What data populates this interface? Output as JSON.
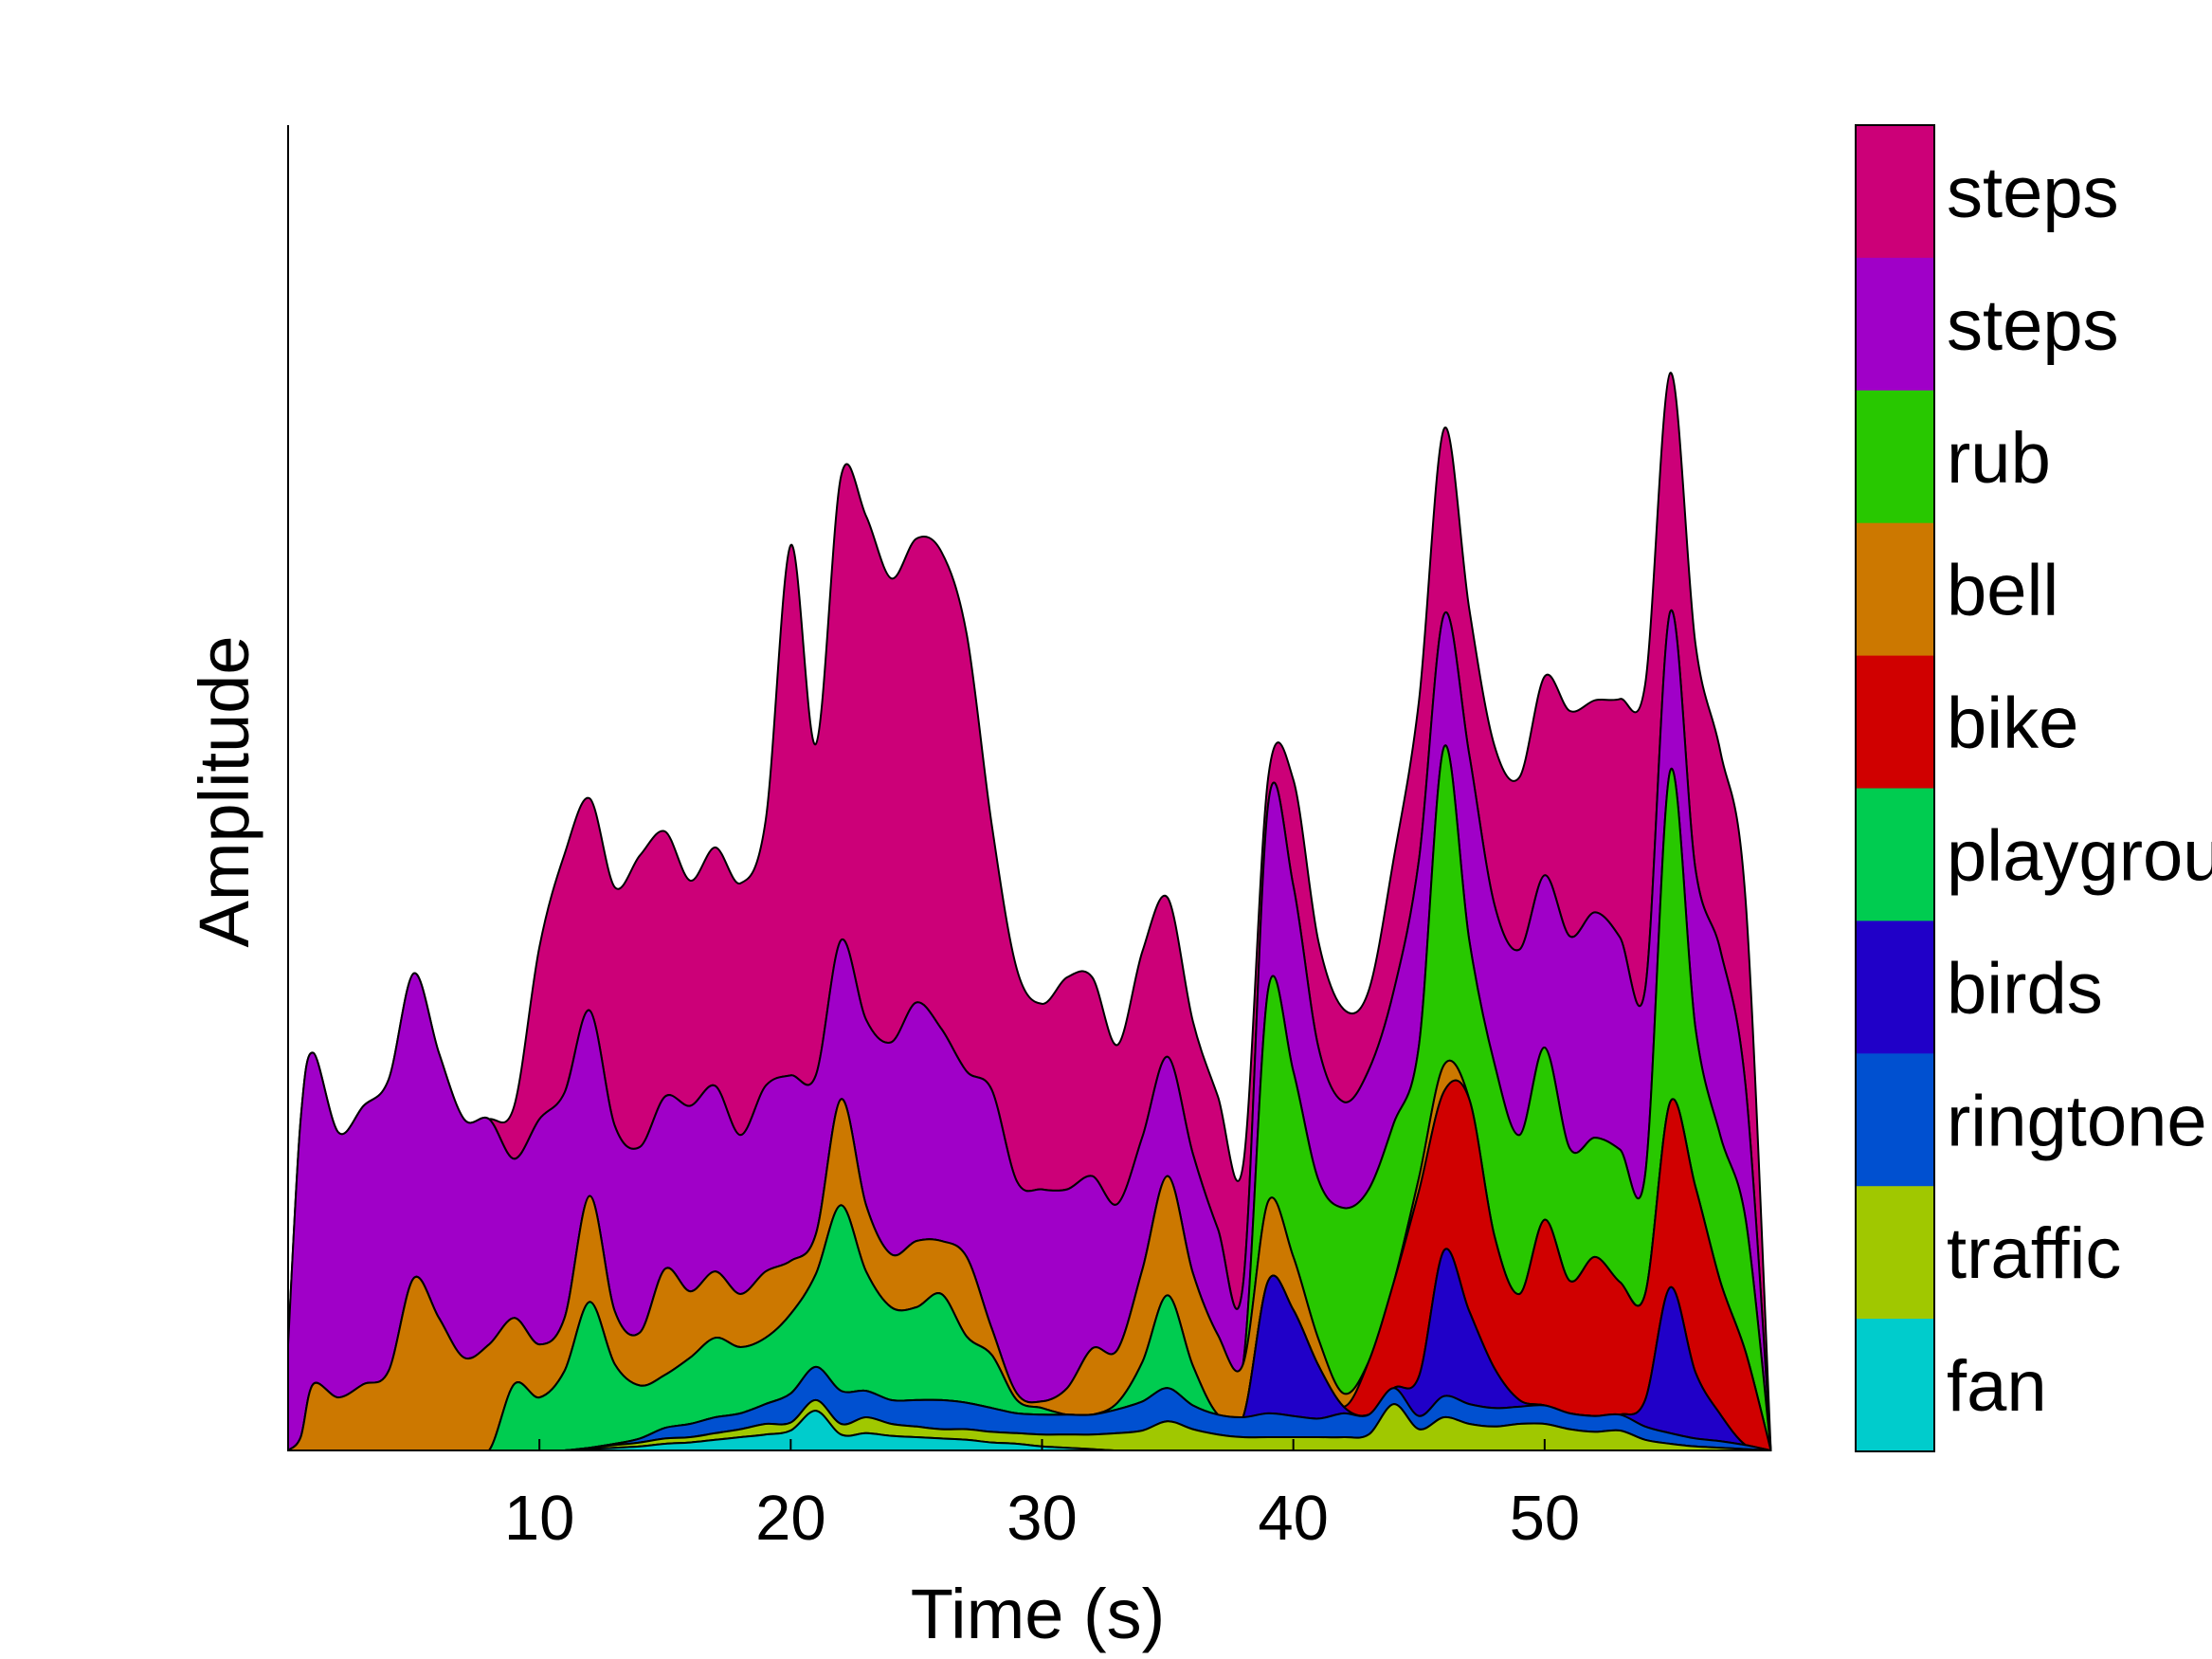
{
  "chart_data": {
    "type": "area",
    "stacked": true,
    "xlabel": "Time (s)",
    "ylabel": "Amplitude",
    "xlim": [
      0,
      60
    ],
    "ylim": [
      0,
      100
    ],
    "x_ticks": [
      10,
      20,
      30,
      40,
      50
    ],
    "y_ticks_shown": false,
    "grid": false,
    "legend": {
      "placement": "right",
      "style": "colorbar",
      "entries": [
        "fan",
        "traffic",
        "ringtone",
        "birds",
        "playground",
        "bike",
        "bell",
        "rub",
        "steps",
        "steps"
      ],
      "visible_text": [
        "fan",
        "traffic",
        "ringtone",
        "birds",
        "playgrou",
        "bike",
        "bell",
        "rub",
        "steps",
        "steps"
      ]
    },
    "x": [
      0,
      0.5,
      1,
      2,
      3,
      4,
      5,
      6,
      7,
      8,
      9,
      10,
      11,
      12,
      13,
      14,
      15,
      16,
      17,
      18,
      19,
      20,
      21,
      22,
      23,
      24,
      25,
      26,
      27,
      28,
      29,
      30,
      31,
      32,
      33,
      34,
      35,
      36,
      37,
      38,
      39,
      40,
      41,
      42,
      43,
      44,
      45,
      46,
      47,
      48,
      49,
      50,
      51,
      52,
      53,
      54,
      55,
      56,
      57,
      58,
      59
    ],
    "series": [
      {
        "name": "steps",
        "color": "#00cccc",
        "values": [
          0,
          0,
          0,
          0,
          0,
          0,
          0,
          0,
          0,
          0,
          0,
          0,
          0,
          0.1,
          0.2,
          0.3,
          0.5,
          0.6,
          0.8,
          1,
          1.2,
          1.5,
          3,
          1.2,
          1.3,
          1.1,
          1,
          0.9,
          0.8,
          0.6,
          0.5,
          0.3,
          0.2,
          0.1,
          0,
          0,
          0,
          0,
          0,
          0,
          0,
          0,
          0,
          0,
          0,
          0,
          0,
          0,
          0,
          0,
          0,
          0,
          0,
          0,
          0,
          0,
          0,
          0,
          0,
          0,
          0
        ]
      },
      {
        "name": "steps",
        "color": "#a0c800",
        "values": [
          0,
          0,
          0,
          0,
          0,
          0,
          0,
          0,
          0,
          0,
          0,
          0,
          0,
          0.1,
          0.2,
          0.3,
          0.4,
          0.4,
          0.5,
          0.6,
          0.8,
          0.6,
          0.8,
          0.8,
          1.2,
          0.9,
          0.8,
          0.7,
          0.8,
          0.8,
          0.8,
          0.9,
          1,
          1.1,
          1.3,
          1.5,
          2.2,
          1.6,
          1.2,
          1,
          1,
          1,
          1,
          1,
          1.2,
          3.5,
          1.6,
          2.5,
          2,
          1.8,
          2,
          2,
          1.6,
          1.4,
          1.5,
          0.8,
          0.5,
          0.3,
          0.2,
          0.1,
          0
        ]
      },
      {
        "name": "rub",
        "color": "#0050d0",
        "values": [
          0,
          0,
          0,
          0,
          0,
          0,
          0,
          0,
          0,
          0,
          0,
          0,
          0,
          0,
          0.1,
          0.3,
          0.8,
          1,
          1.2,
          1.2,
          1.5,
          2.2,
          2.5,
          2.5,
          2,
          1.8,
          2,
          2.2,
          2,
          1.8,
          1.5,
          1.5,
          1.5,
          1.5,
          1.8,
          2.2,
          2.5,
          1.8,
          1.5,
          1.5,
          1.8,
          1.6,
          1.4,
          1.8,
          1.5,
          1.2,
          1,
          1.6,
          1.5,
          1.4,
          1.3,
          1.4,
          1.2,
          1.2,
          1.2,
          1,
          0.8,
          0.6,
          0.5,
          0.3,
          0
        ]
      },
      {
        "name": "bell",
        "color": "#2000c8",
        "values": [
          0,
          0,
          0,
          0,
          0,
          0,
          0,
          0,
          0,
          0,
          0,
          0,
          0,
          0,
          0,
          0,
          0,
          0,
          0,
          0,
          0,
          0,
          0,
          0,
          0,
          0,
          0,
          0,
          0,
          0,
          0,
          0,
          0,
          0,
          0,
          0,
          0,
          0,
          0,
          0,
          10,
          8,
          4,
          0.5,
          0,
          0,
          3,
          11,
          7,
          3,
          0.5,
          0,
          0,
          0,
          0,
          2,
          11,
          5,
          2,
          0,
          0
        ]
      },
      {
        "name": "bike",
        "color": "#00cc50",
        "values": [
          0,
          0,
          0,
          0,
          0,
          0,
          0,
          0,
          0,
          0,
          5,
          4,
          6,
          11,
          6,
          4,
          4,
          5,
          6,
          5,
          5,
          6,
          7,
          14,
          9,
          7,
          7,
          8,
          5,
          4,
          1,
          0.5,
          0,
          0,
          0.5,
          3,
          7,
          3,
          0,
          0,
          0,
          0,
          0,
          0,
          0,
          0,
          0,
          0,
          0,
          0,
          0,
          0,
          0,
          0,
          0,
          0,
          0,
          0,
          0,
          0,
          0
        ]
      },
      {
        "name": "playground",
        "color": "#d00000",
        "values": [
          0,
          0,
          0,
          0,
          0,
          0,
          0,
          0,
          0,
          0,
          0,
          0,
          0,
          0,
          0,
          0,
          0,
          0,
          0,
          0,
          0,
          0,
          0,
          0,
          0,
          0,
          0,
          0,
          0,
          0,
          0,
          0,
          0,
          0,
          0,
          0,
          0,
          0,
          0,
          0,
          0,
          0,
          0,
          0,
          4,
          8,
          14,
          12,
          16,
          10,
          8,
          14,
          10,
          12,
          10,
          8,
          14,
          14,
          10,
          7,
          0
        ]
      },
      {
        "name": "birds",
        "color": "#cc7800",
        "values": [
          0,
          1,
          5,
          4,
          5,
          6,
          13,
          10,
          7,
          8,
          5,
          4,
          4,
          8,
          4,
          4,
          8,
          5,
          5,
          4,
          5,
          4,
          3,
          8,
          5,
          4,
          5,
          4,
          6,
          2,
          0.5,
          0.5,
          2,
          5,
          4,
          7,
          9,
          7,
          6,
          4,
          6,
          4,
          2,
          1,
          0,
          0,
          1,
          2,
          0,
          0,
          0,
          0,
          0,
          0,
          0,
          0,
          0,
          0,
          0,
          0,
          0
        ]
      },
      {
        "name": "ringtone",
        "color": "#28c800",
        "values": [
          0,
          0,
          0,
          0,
          0,
          0,
          0,
          0,
          0,
          0,
          0,
          0,
          0,
          0,
          0,
          0,
          0,
          0,
          0,
          0,
          0,
          0,
          0,
          0,
          0,
          0,
          0,
          0,
          0,
          0,
          0,
          0,
          0,
          0,
          0,
          0,
          0,
          0,
          0,
          0,
          16,
          14,
          12,
          14,
          13,
          12,
          10,
          24,
          12,
          13,
          12,
          13,
          10,
          9,
          10,
          9,
          25,
          12,
          11,
          10,
          0
        ]
      },
      {
        "name": "traffic",
        "color": "#a000c8",
        "values": [
          8,
          24,
          25,
          20,
          21,
          22,
          23,
          20,
          18,
          17,
          12,
          17,
          17,
          14,
          14,
          14,
          13,
          14,
          14,
          12,
          14,
          14,
          12,
          12,
          14,
          16,
          18,
          16,
          14,
          18,
          16,
          16,
          15,
          13,
          11,
          10,
          9,
          9,
          8,
          6,
          14,
          14,
          10,
          8,
          9,
          10,
          14,
          10,
          14,
          12,
          14,
          13,
          16,
          17,
          16,
          14,
          12,
          12,
          14,
          10,
          0
        ]
      },
      {
        "name": "fan",
        "color": "#cc0078",
        "values": [
          0,
          0,
          0,
          0,
          0,
          0,
          0,
          0,
          0,
          0,
          4,
          13,
          18,
          16,
          18,
          22,
          20,
          17,
          18,
          19,
          20,
          40,
          25,
          35,
          38,
          35,
          35,
          36,
          33,
          20,
          16,
          14,
          16,
          15,
          12,
          14,
          12,
          10,
          10,
          9,
          2,
          8,
          8,
          7,
          6,
          10,
          12,
          14,
          11,
          12,
          13,
          15,
          17,
          16,
          18,
          23,
          18,
          17,
          15,
          14,
          0
        ]
      }
    ]
  }
}
